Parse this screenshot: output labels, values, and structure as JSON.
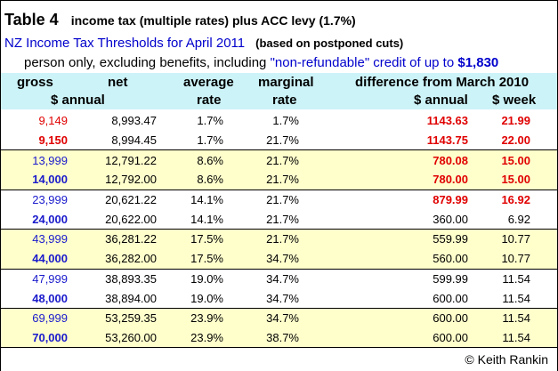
{
  "title": {
    "main": "Table 4",
    "sub": "income tax (multiple rates) plus ACC levy (1.7%)"
  },
  "subtitle": {
    "main": "NZ Income Tax Thresholds for April 2011",
    "note": "(based on postponed cuts)"
  },
  "note": {
    "prefix": "person only, excluding benefits, including",
    "highlight": "\"non-refundable\" credit of up to",
    "amount": "$1,830"
  },
  "header": {
    "gross": "gross",
    "net": "net",
    "annual": "$ annual",
    "average": "average",
    "average_rate": "rate",
    "marginal": "marginal",
    "marginal_rate": "rate",
    "difference": "difference from March 2010",
    "diff_annual": "$ annual",
    "diff_week": "$ week"
  },
  "rows": [
    {
      "gross": "9,149",
      "net": "8,993.47",
      "avg": "1.7%",
      "marg": "1.7%",
      "annual": "1143.63",
      "week": "21.99"
    },
    {
      "gross": "9,150",
      "net": "8,994.45",
      "avg": "1.7%",
      "marg": "21.7%",
      "annual": "1143.75",
      "week": "22.00"
    },
    {
      "gross": "13,999",
      "net": "12,791.22",
      "avg": "8.6%",
      "marg": "21.7%",
      "annual": "780.08",
      "week": "15.00"
    },
    {
      "gross": "14,000",
      "net": "12,792.00",
      "avg": "8.6%",
      "marg": "21.7%",
      "annual": "780.00",
      "week": "15.00"
    },
    {
      "gross": "23,999",
      "net": "20,621.22",
      "avg": "14.1%",
      "marg": "21.7%",
      "annual": "879.99",
      "week": "16.92"
    },
    {
      "gross": "24,000",
      "net": "20,622.00",
      "avg": "14.1%",
      "marg": "21.7%",
      "annual": "360.00",
      "week": "6.92"
    },
    {
      "gross": "43,999",
      "net": "36,281.22",
      "avg": "17.5%",
      "marg": "21.7%",
      "annual": "559.99",
      "week": "10.77"
    },
    {
      "gross": "44,000",
      "net": "36,282.00",
      "avg": "17.5%",
      "marg": "34.7%",
      "annual": "560.00",
      "week": "10.77"
    },
    {
      "gross": "47,999",
      "net": "38,893.35",
      "avg": "19.0%",
      "marg": "34.7%",
      "annual": "599.99",
      "week": "11.54"
    },
    {
      "gross": "48,000",
      "net": "38,894.00",
      "avg": "19.0%",
      "marg": "34.7%",
      "annual": "600.00",
      "week": "11.54"
    },
    {
      "gross": "69,999",
      "net": "53,259.35",
      "avg": "23.9%",
      "marg": "34.7%",
      "annual": "600.00",
      "week": "11.54"
    },
    {
      "gross": "70,000",
      "net": "53,260.00",
      "avg": "23.9%",
      "marg": "38.7%",
      "annual": "600.00",
      "week": "11.54"
    }
  ],
  "footer": {
    "copyright": "© Keith Rankin"
  },
  "colors": {
    "red": "#e00000",
    "blue": "#1a1acc",
    "header_bg": "#ccf3f8",
    "band_yellow": "#ffffcc"
  }
}
